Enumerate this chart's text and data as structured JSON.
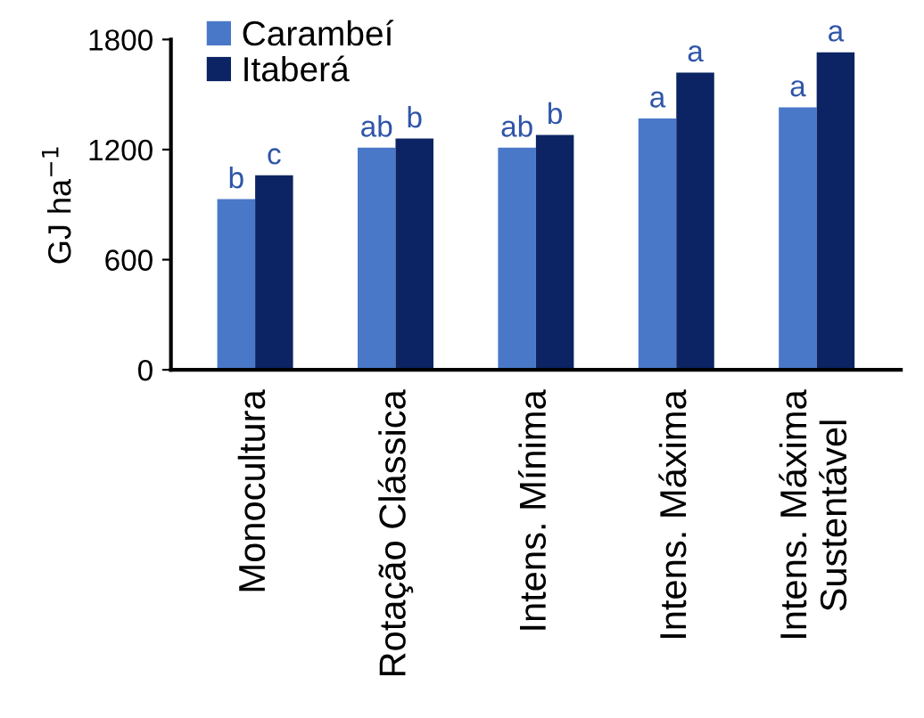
{
  "chart_data": {
    "type": "bar",
    "ylabel": "GJ ha$^{−1}$",
    "categories": [
      "Monocultura",
      "Rotação Clássica",
      "Intens. Mínima",
      "Intens. Máxima",
      "Intens. Máxima\nSustentável"
    ],
    "series": [
      {
        "name": "Carambeí",
        "color": "#4a78c8",
        "values": [
          930,
          1210,
          1210,
          1370,
          1430
        ],
        "value_labels": [
          "b",
          "ab",
          "ab",
          "a",
          "a"
        ]
      },
      {
        "name": "Itaberá",
        "color": "#0c2463",
        "values": [
          1060,
          1260,
          1280,
          1620,
          1730
        ],
        "value_labels": [
          "c",
          "b",
          "b",
          "a",
          "a"
        ]
      }
    ],
    "ylim": [
      0,
      1800
    ],
    "yticks": [
      0,
      600,
      1200,
      1800
    ],
    "grid": false,
    "legend": "top left"
  }
}
